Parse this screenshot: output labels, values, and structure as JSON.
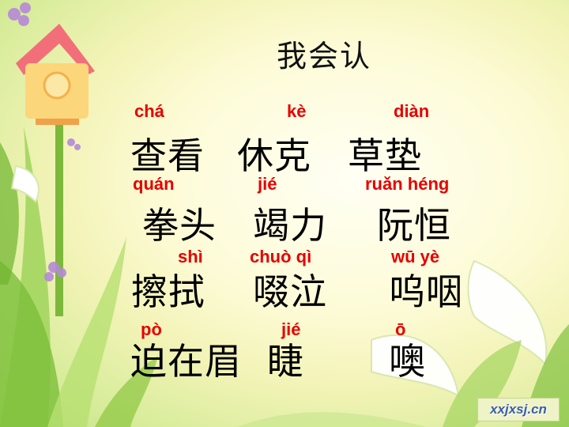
{
  "title": "我会认",
  "rows": [
    {
      "pinyin": [
        "chá",
        "kè",
        "diàn"
      ],
      "words": [
        "查看",
        "休克",
        "草垫"
      ]
    },
    {
      "pinyin": [
        "quán",
        "jié",
        "ruǎn héng"
      ],
      "words": [
        "拳头",
        "竭力",
        "阮恒"
      ]
    },
    {
      "pinyin": [
        "shì",
        "chuò qì",
        "wū yè"
      ],
      "words": [
        "擦拭",
        "啜泣",
        "呜咽"
      ]
    },
    {
      "pinyin": [
        "pò",
        "jié",
        "ō"
      ],
      "words": [
        "迫在眉",
        "睫",
        "噢"
      ]
    }
  ],
  "watermark": "xxjxsj.cn",
  "colors": {
    "pinyin": "#e60000",
    "hanzi": "#000000",
    "background": "#fdfbd6",
    "leaf_green": "#8cc63f"
  }
}
